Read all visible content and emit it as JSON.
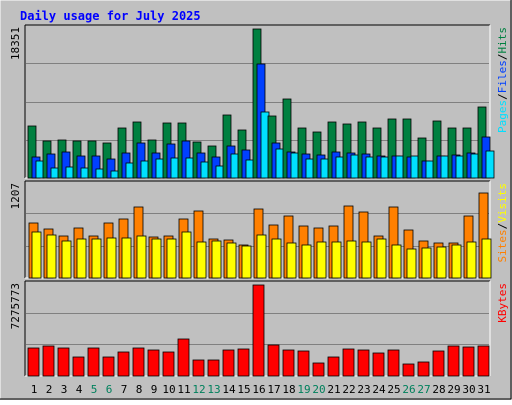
{
  "title": "Daily usage for July 2025",
  "colors": {
    "background": "#C0C0C0",
    "title": "#0000FF",
    "hits": "#008040",
    "files": "#0040FF",
    "pages": "#00E0FF",
    "visits": "#FFFF00",
    "sites": "#FF8000",
    "kbytes": "#FF0000",
    "weekend_day_label": "#00805C"
  },
  "chart_data": [
    {
      "type": "bar",
      "panel": "hits_files_pages",
      "y_max_label": "18351",
      "ylim": [
        0,
        18351
      ],
      "grid": true,
      "legend_text": [
        "Pages",
        "/",
        "Files",
        "/",
        "Hits"
      ],
      "categories": [
        "1",
        "2",
        "3",
        "4",
        "5",
        "6",
        "7",
        "8",
        "9",
        "10",
        "11",
        "12",
        "13",
        "14",
        "15",
        "16",
        "17",
        "18",
        "19",
        "20",
        "21",
        "22",
        "23",
        "24",
        "25",
        "26",
        "27",
        "28",
        "29",
        "30",
        "31"
      ],
      "weekend_days": [
        "5",
        "6",
        "12",
        "13",
        "19",
        "20",
        "26",
        "27"
      ],
      "series": [
        {
          "name": "Hits",
          "values": [
            6350,
            4600,
            4650,
            4600,
            4500,
            4300,
            6200,
            6950,
            4700,
            6800,
            6800,
            4400,
            4000,
            7750,
            5900,
            18300,
            7600,
            9700,
            6200,
            5700,
            6850,
            6700,
            6950,
            6200,
            7300,
            7300,
            4900,
            7050,
            6100,
            6100,
            8750
          ]
        },
        {
          "name": "Files",
          "values": [
            2600,
            2950,
            3150,
            2650,
            2700,
            2300,
            3100,
            4300,
            3100,
            4200,
            4500,
            3050,
            2600,
            4000,
            3500,
            14000,
            4250,
            3250,
            2950,
            2850,
            3250,
            3100,
            2950,
            2750,
            2750,
            2600,
            2150,
            2650,
            2850,
            3100,
            5050
          ]
        },
        {
          "name": "Pages",
          "values": [
            2050,
            1200,
            1350,
            1200,
            1050,
            850,
            1850,
            2150,
            2350,
            2500,
            2450,
            1950,
            1500,
            2900,
            2250,
            8100,
            3550,
            3050,
            2400,
            2400,
            2600,
            2800,
            2600,
            2600,
            2750,
            2750,
            2150,
            2700,
            2650,
            2900,
            3350
          ]
        }
      ]
    },
    {
      "type": "bar",
      "panel": "visits_sites",
      "y_max_label": "1207",
      "ylim": [
        0,
        1207
      ],
      "grid": true,
      "legend_text": [
        "Sites",
        "/",
        "Visits"
      ],
      "categories": [
        "1",
        "2",
        "3",
        "4",
        "5",
        "6",
        "7",
        "8",
        "9",
        "10",
        "11",
        "12",
        "13",
        "14",
        "15",
        "16",
        "17",
        "18",
        "19",
        "20",
        "21",
        "22",
        "23",
        "24",
        "25",
        "26",
        "27",
        "28",
        "29",
        "30",
        "31"
      ],
      "series": [
        {
          "name": "Visits",
          "values": [
            600,
            560,
            480,
            500,
            500,
            520,
            520,
            540,
            500,
            500,
            600,
            470,
            480,
            450,
            420,
            560,
            500,
            460,
            430,
            470,
            470,
            480,
            470,
            510,
            430,
            370,
            390,
            400,
            430,
            470,
            510
          ]
        },
        {
          "name": "Sites",
          "values": [
            720,
            640,
            540,
            650,
            550,
            720,
            770,
            920,
            530,
            550,
            770,
            870,
            510,
            490,
            430,
            890,
            690,
            810,
            670,
            650,
            670,
            940,
            860,
            540,
            920,
            620,
            480,
            450,
            460,
            800,
            1100
          ]
        }
      ]
    },
    {
      "type": "bar",
      "panel": "kbytes",
      "y_max_label": "7275773",
      "ylim": [
        0,
        7275773
      ],
      "grid": true,
      "legend_text": [
        "KBytes"
      ],
      "categories": [
        "1",
        "2",
        "3",
        "4",
        "5",
        "6",
        "7",
        "8",
        "9",
        "10",
        "11",
        "12",
        "13",
        "14",
        "15",
        "16",
        "17",
        "18",
        "19",
        "20",
        "21",
        "22",
        "23",
        "24",
        "25",
        "26",
        "27",
        "28",
        "29",
        "30",
        "31"
      ],
      "series": [
        {
          "name": "KBytes",
          "values": [
            2250000,
            2400000,
            2200000,
            1500000,
            2200000,
            1550000,
            1950000,
            2200000,
            2050000,
            1900000,
            2950000,
            1300000,
            1300000,
            2050000,
            2150000,
            7275000,
            2450000,
            2100000,
            2000000,
            1050000,
            1500000,
            2150000,
            2100000,
            1850000,
            2050000,
            950000,
            1150000,
            2000000,
            2400000,
            2350000,
            2400000
          ]
        }
      ]
    }
  ]
}
